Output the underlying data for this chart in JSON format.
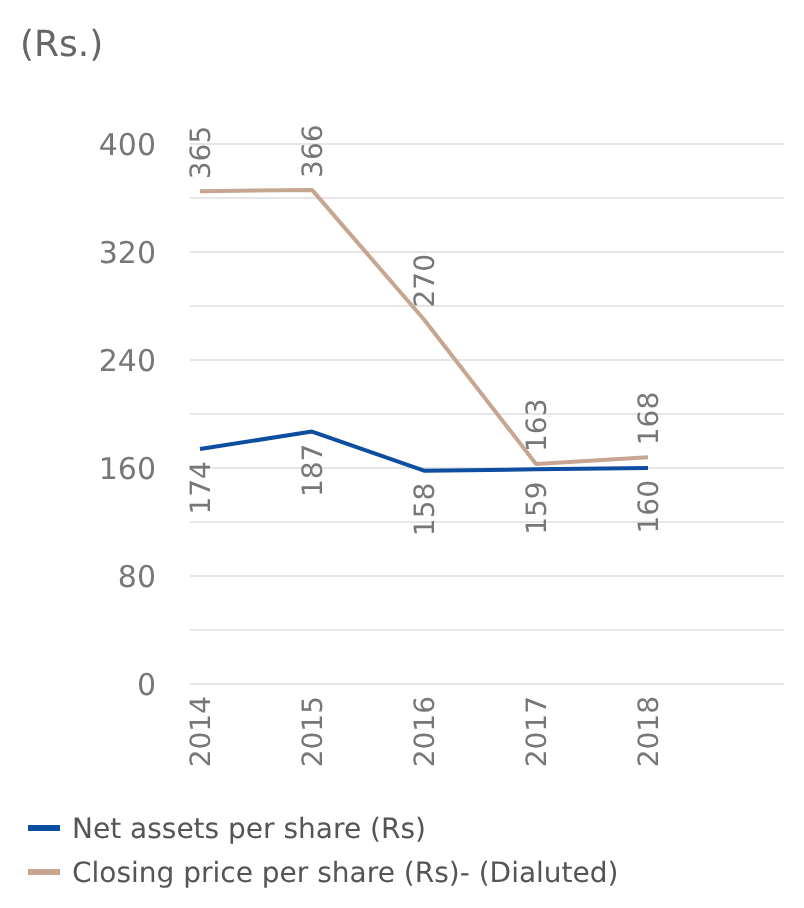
{
  "chart_data": {
    "type": "line",
    "ylabel": "(Rs.)",
    "categories": [
      "2014",
      "2015",
      "2016",
      "2017",
      "2018"
    ],
    "series": [
      {
        "name": "Net assets per share (Rs)",
        "color": "#0d4ea0",
        "values": [
          174,
          187,
          158,
          159,
          160
        ]
      },
      {
        "name": "Closing price per share (Rs)- (Dialuted)",
        "color": "#c6a691",
        "values": [
          365,
          366,
          270,
          163,
          168
        ]
      }
    ],
    "ylim": [
      0,
      400
    ],
    "yticks": [
      0,
      {
        "value": 40,
        "label": null
      },
      80,
      {
        "value": 120,
        "label": null
      },
      160,
      {
        "value": 200,
        "label": null
      },
      240,
      {
        "value": 280,
        "label": null
      },
      320,
      {
        "value": 360,
        "label": null
      },
      400
    ],
    "grid": "y",
    "data_labels": true,
    "legend": "bottom",
    "marker": "none",
    "line_style": "solid"
  }
}
